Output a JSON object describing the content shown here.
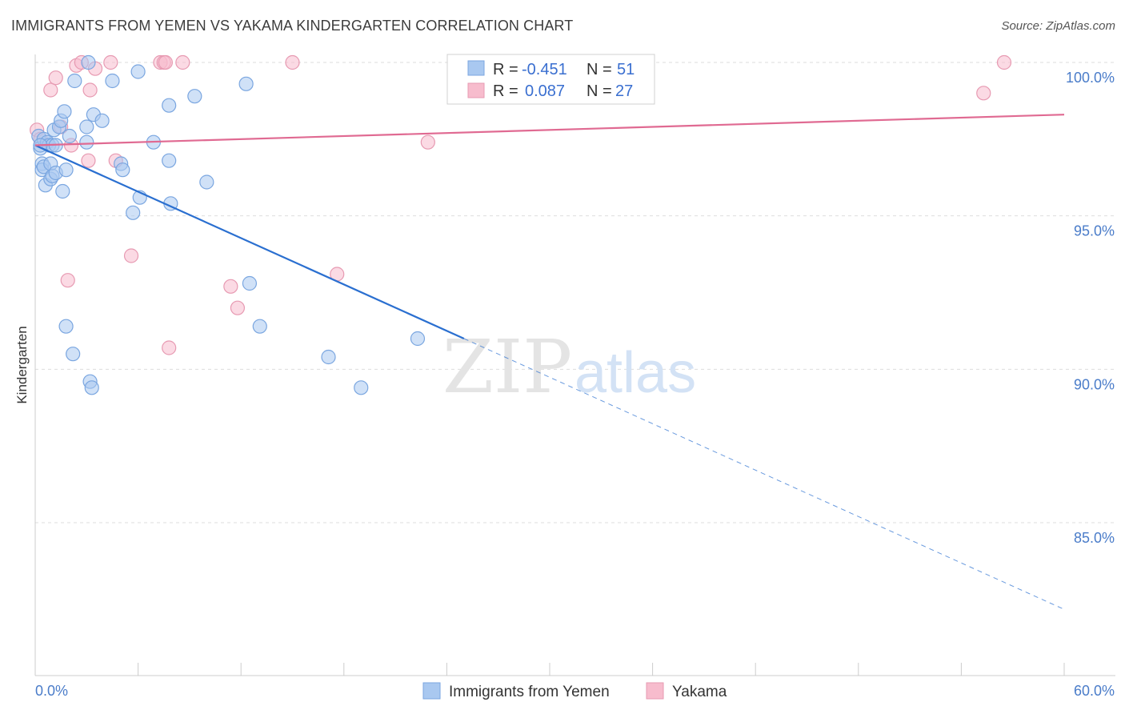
{
  "title": "IMMIGRANTS FROM YEMEN VS YAKAMA KINDERGARTEN CORRELATION CHART",
  "source": "Source: ZipAtlas.com",
  "watermark": {
    "zip": "ZIP",
    "atlas": "atlas"
  },
  "colors": {
    "blue_fill": "#a9c8f0",
    "blue_stroke": "#7aa6e0",
    "blue_line": "#2a6fd0",
    "pink_fill": "#f7bccd",
    "pink_stroke": "#e79ab2",
    "pink_line": "#e06a92",
    "grid": "#dddddd",
    "axis_text": "#4a7cc9"
  },
  "legend": {
    "rows": [
      {
        "r_label": "R = ",
        "r_value": "-0.451",
        "n_label": "N = ",
        "n_value": "51"
      },
      {
        "r_label": "R = ",
        "r_value": "0.087",
        "n_label": "N = ",
        "n_value": "27"
      }
    ]
  },
  "chart_data": {
    "type": "scatter",
    "title": "IMMIGRANTS FROM YEMEN VS YAKAMA KINDERGARTEN CORRELATION CHART",
    "xlabel": "",
    "ylabel": "Kindergarten",
    "xlim": [
      0,
      60
    ],
    "ylim": [
      80.3,
      100.8
    ],
    "x_tick_labels": [
      "0.0%",
      "60.0%"
    ],
    "y_ticks": [
      100,
      95,
      90,
      85
    ],
    "y_tick_labels": [
      "100.0%",
      "95.0%",
      "90.0%",
      "85.0%"
    ],
    "legend_position": "top-center",
    "series": [
      {
        "name": "Immigrants from Yemen",
        "color": "#a9c8f0",
        "r": -0.451,
        "n": 51,
        "points": [
          [
            0.2,
            97.6
          ],
          [
            0.3,
            97.2
          ],
          [
            0.4,
            96.7
          ],
          [
            0.4,
            96.5
          ],
          [
            0.5,
            97.5
          ],
          [
            0.5,
            96.6
          ],
          [
            0.6,
            96.0
          ],
          [
            0.7,
            97.4
          ],
          [
            0.8,
            97.3
          ],
          [
            0.9,
            96.7
          ],
          [
            0.9,
            96.2
          ],
          [
            1.0,
            97.3
          ],
          [
            1.0,
            96.3
          ],
          [
            1.1,
            97.8
          ],
          [
            1.2,
            97.3
          ],
          [
            1.2,
            96.4
          ],
          [
            1.4,
            97.9
          ],
          [
            1.5,
            98.1
          ],
          [
            1.6,
            95.8
          ],
          [
            1.7,
            98.4
          ],
          [
            1.8,
            96.5
          ],
          [
            2.0,
            97.6
          ],
          [
            2.3,
            99.4
          ],
          [
            3.0,
            97.9
          ],
          [
            3.0,
            97.4
          ],
          [
            3.1,
            100.0
          ],
          [
            3.4,
            98.3
          ],
          [
            3.9,
            98.1
          ],
          [
            4.5,
            99.4
          ],
          [
            5.0,
            96.7
          ],
          [
            5.1,
            96.5
          ],
          [
            5.7,
            95.1
          ],
          [
            6.0,
            99.7
          ],
          [
            6.1,
            95.6
          ],
          [
            6.9,
            97.4
          ],
          [
            7.8,
            96.8
          ],
          [
            7.8,
            98.6
          ],
          [
            7.9,
            95.4
          ],
          [
            9.3,
            98.9
          ],
          [
            10.0,
            96.1
          ],
          [
            12.3,
            99.3
          ],
          [
            12.5,
            92.8
          ],
          [
            13.1,
            91.4
          ],
          [
            1.8,
            91.4
          ],
          [
            2.2,
            90.5
          ],
          [
            3.2,
            89.6
          ],
          [
            3.3,
            89.4
          ],
          [
            17.1,
            90.4
          ],
          [
            19.0,
            89.4
          ],
          [
            22.3,
            91.0
          ],
          [
            0.3,
            97.3
          ]
        ],
        "trend": {
          "x0": 0,
          "y0": 97.3,
          "x1": 25.0,
          "y1": 91.0,
          "dash_x1": 59.9,
          "dash_y1": 82.2
        }
      },
      {
        "name": "Yakama",
        "color": "#f7bccd",
        "r": 0.087,
        "n": 27,
        "points": [
          [
            0.1,
            97.8
          ],
          [
            0.3,
            97.5
          ],
          [
            0.9,
            99.1
          ],
          [
            1.2,
            99.5
          ],
          [
            1.5,
            97.9
          ],
          [
            1.9,
            92.9
          ],
          [
            2.1,
            97.3
          ],
          [
            2.4,
            99.9
          ],
          [
            2.7,
            100.0
          ],
          [
            3.1,
            96.8
          ],
          [
            3.2,
            99.1
          ],
          [
            3.5,
            99.8
          ],
          [
            4.4,
            100.0
          ],
          [
            4.7,
            96.8
          ],
          [
            5.6,
            93.7
          ],
          [
            7.3,
            100.0
          ],
          [
            7.5,
            100.0
          ],
          [
            7.6,
            100.0
          ],
          [
            7.8,
            90.7
          ],
          [
            8.6,
            100.0
          ],
          [
            11.4,
            92.7
          ],
          [
            11.8,
            92.0
          ],
          [
            15.0,
            100.0
          ],
          [
            17.6,
            93.1
          ],
          [
            22.9,
            97.4
          ],
          [
            55.3,
            99.0
          ],
          [
            56.5,
            100.0
          ]
        ],
        "trend": {
          "x0": 0,
          "y0": 97.3,
          "x1": 60,
          "y1": 98.3
        }
      }
    ]
  }
}
